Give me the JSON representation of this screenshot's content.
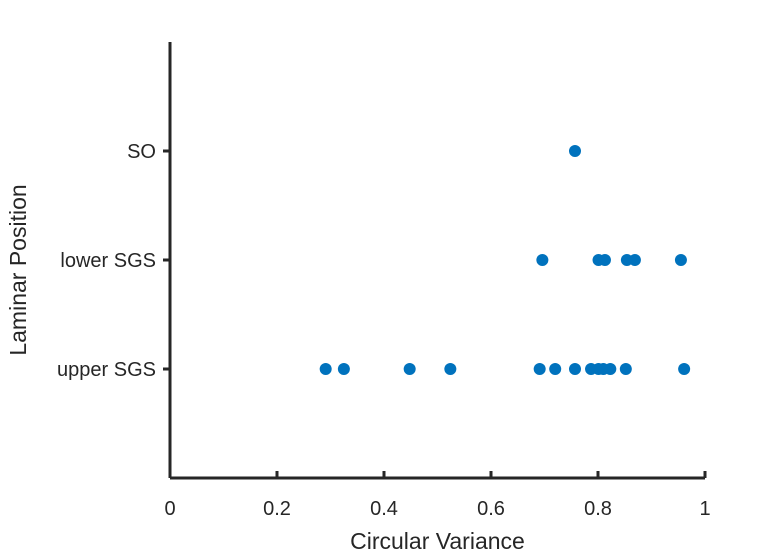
{
  "chart_data": {
    "type": "scatter",
    "xlabel": "Circular Variance",
    "ylabel": "Laminar Position",
    "xlim": [
      0,
      1
    ],
    "ylim": [
      0,
      4
    ],
    "x_ticks": [
      0,
      0.2,
      0.4,
      0.6,
      0.8,
      1
    ],
    "x_tick_labels": [
      "0",
      "0.2",
      "0.4",
      "0.6",
      "0.8",
      "1"
    ],
    "y_categories": [
      {
        "value": 1,
        "label": "upper SGS"
      },
      {
        "value": 2,
        "label": "lower SGS"
      },
      {
        "value": 3,
        "label": "SO"
      }
    ],
    "marker_color": "#0072BD",
    "grid": false,
    "points": [
      {
        "x": 0.757,
        "y": 3
      },
      {
        "x": 0.696,
        "y": 2
      },
      {
        "x": 0.801,
        "y": 2
      },
      {
        "x": 0.813,
        "y": 2
      },
      {
        "x": 0.854,
        "y": 2
      },
      {
        "x": 0.869,
        "y": 2
      },
      {
        "x": 0.955,
        "y": 2
      },
      {
        "x": 0.291,
        "y": 1
      },
      {
        "x": 0.325,
        "y": 1
      },
      {
        "x": 0.448,
        "y": 1
      },
      {
        "x": 0.524,
        "y": 1
      },
      {
        "x": 0.691,
        "y": 1
      },
      {
        "x": 0.72,
        "y": 1
      },
      {
        "x": 0.757,
        "y": 1
      },
      {
        "x": 0.787,
        "y": 1
      },
      {
        "x": 0.801,
        "y": 1
      },
      {
        "x": 0.81,
        "y": 1
      },
      {
        "x": 0.823,
        "y": 1
      },
      {
        "x": 0.852,
        "y": 1
      },
      {
        "x": 0.961,
        "y": 1
      }
    ]
  }
}
